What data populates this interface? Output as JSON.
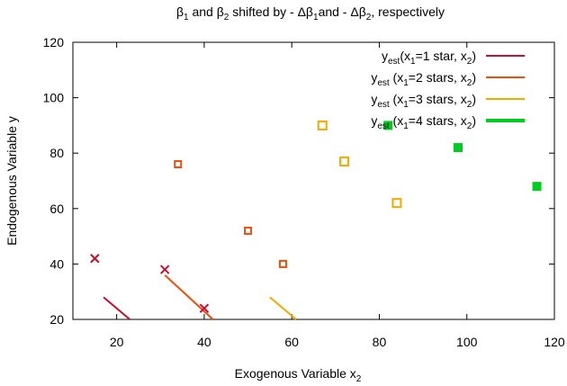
{
  "chart_data": {
    "type": "scatter",
    "title": {
      "beta": "β",
      "s1": "1",
      "and1": " and ",
      "s2": "2",
      "mid": " shifted by - Δβ",
      "s3": "1",
      "and2": "and - Δβ",
      "s4": "2",
      "end": ", respectively"
    },
    "xlabel": {
      "main": "Exogenous Variable x",
      "sub": "2"
    },
    "ylabel": "Endogenous Variable y",
    "xlim": [
      10,
      120
    ],
    "ylim": [
      20,
      120
    ],
    "xticks": [
      20,
      40,
      60,
      80,
      100,
      120
    ],
    "yticks": [
      20,
      40,
      60,
      80,
      100,
      120
    ],
    "grid": false,
    "legend_position": "top-right",
    "series": [
      {
        "name": {
          "pre": "y",
          "sub": "est",
          "open": "(x",
          "xsub": "1",
          "mid": "=1 star, x",
          "x2sub": "2",
          "close": ")"
        },
        "color": "#c8102e",
        "marker": "x",
        "line_width": 2,
        "points": [
          {
            "x": 15,
            "y": 42
          },
          {
            "x": 31,
            "y": 38
          },
          {
            "x": 40,
            "y": 24
          }
        ],
        "line": [
          {
            "x": 17,
            "y": 28
          },
          {
            "x": 23,
            "y": 20
          }
        ]
      },
      {
        "name": {
          "pre": "y",
          "sub": "est",
          "open": " (x",
          "xsub": "1",
          "mid": "=2 stars, x",
          "x2sub": "2",
          "close": ")"
        },
        "color": "#f04e0c",
        "marker": "open-square",
        "line_width": 2,
        "points": [
          {
            "x": 34,
            "y": 76
          },
          {
            "x": 50,
            "y": 52
          },
          {
            "x": 58,
            "y": 40
          }
        ],
        "line": [
          {
            "x": 31,
            "y": 36
          },
          {
            "x": 42,
            "y": 20
          }
        ]
      },
      {
        "name": {
          "pre": "y",
          "sub": "est",
          "open": " (x",
          "xsub": "1",
          "mid": "=3 stars, x",
          "x2sub": "2",
          "close": ")"
        },
        "color": "#f5a800",
        "marker": "open-square",
        "line_width": 2,
        "points": [
          {
            "x": 67,
            "y": 90
          },
          {
            "x": 72,
            "y": 77
          },
          {
            "x": 84,
            "y": 62
          }
        ],
        "line": [
          {
            "x": 55,
            "y": 28
          },
          {
            "x": 61,
            "y": 20
          }
        ]
      },
      {
        "name": {
          "pre": "y",
          "sub": "est",
          "open": " (x",
          "xsub": "1",
          "mid": "=4 stars, x",
          "x2sub": "2",
          "close": ")"
        },
        "color": "#00cc22",
        "marker": "filled-square",
        "line_width": 4,
        "points": [
          {
            "x": 82,
            "y": 90
          },
          {
            "x": 98,
            "y": 82
          },
          {
            "x": 116,
            "y": 68
          }
        ],
        "line": []
      }
    ]
  }
}
